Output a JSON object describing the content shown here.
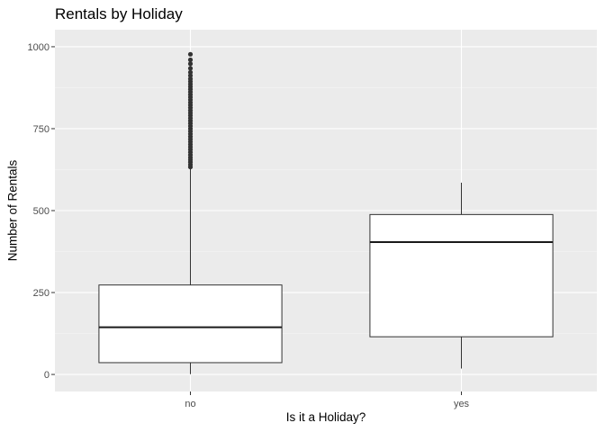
{
  "chart_data": {
    "type": "boxplot",
    "title": "Rentals by Holiday",
    "xlabel": "Is it a Holiday?",
    "ylabel": "Number of Rentals",
    "categories": [
      "no",
      "yes"
    ],
    "ylim": [
      -52,
      1052
    ],
    "yticks": [
      0,
      250,
      500,
      750,
      1000
    ],
    "ytick_labels": [
      "0",
      "250",
      "500",
      "750",
      "1000"
    ],
    "boxes": [
      {
        "category": "no",
        "whisker_low": 1,
        "q1": 36,
        "median": 144,
        "q3": 273,
        "whisker_high": 630,
        "outliers": [
          633,
          640,
          648,
          655,
          662,
          670,
          678,
          686,
          694,
          702,
          710,
          718,
          726,
          734,
          742,
          750,
          758,
          766,
          774,
          782,
          790,
          798,
          806,
          814,
          822,
          830,
          838,
          846,
          854,
          862,
          870,
          878,
          886,
          894,
          902,
          912,
          922,
          934,
          948,
          960,
          977
        ]
      },
      {
        "category": "yes",
        "whisker_low": 18,
        "q1": 115,
        "median": 404,
        "q3": 488,
        "whisker_high": 585,
        "outliers": []
      }
    ],
    "grid": true,
    "legend": "none",
    "colors": {
      "panel": "#ebebeb",
      "grid_major": "#ffffff",
      "box_fill": "#ffffff",
      "box_line": "#333333",
      "outlier": "#333333",
      "tick_text": "#4d4d4d"
    }
  }
}
